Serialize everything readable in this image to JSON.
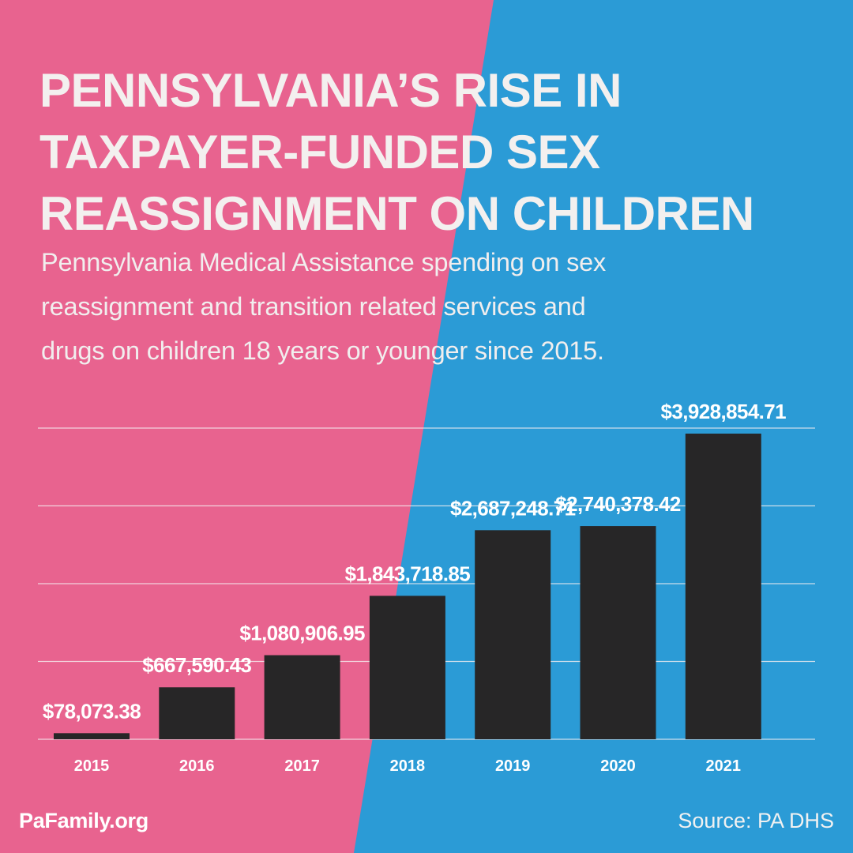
{
  "colors": {
    "pink": "#e8638f",
    "blue": "#2b9bd6",
    "bar": "#272627",
    "text": "#f3f0ef",
    "gridline": "#f4eef0"
  },
  "chart_data": {
    "type": "bar",
    "title": "PENNSYLVANIA'S RISE IN TAXPAYER-FUNDED SEX REASSIGNMENT ON CHILDREN",
    "title_lines": [
      "PENNSYLVANIA’S RISE IN",
      "TAXPAYER-FUNDED SEX",
      "REASSIGNMENT ON CHILDREN"
    ],
    "subtitle_lines": [
      "Pennsylvania Medical Assistance spending on sex",
      "reassignment and transition related services and",
      "drugs on children 18 years or younger since 2015."
    ],
    "xlabel": "",
    "ylabel": "",
    "categories": [
      "2015",
      "2016",
      "2017",
      "2018",
      "2019",
      "2020",
      "2021"
    ],
    "values": [
      78073.38,
      667590.43,
      1080906.95,
      1843718.85,
      2687248.71,
      2740378.42,
      3928854.71
    ],
    "value_labels": [
      "$78,073.38",
      "$667,590.43",
      "$1,080,906.95",
      "$1,843,718.85",
      "$2,687,248.71",
      "$2,740,378.42",
      "$3,928,854.71"
    ],
    "ylim": [
      0,
      4000000
    ],
    "grid": true,
    "legend": "none"
  },
  "footer": {
    "brand": "PaFamily.org",
    "source": "Source: PA DHS"
  }
}
